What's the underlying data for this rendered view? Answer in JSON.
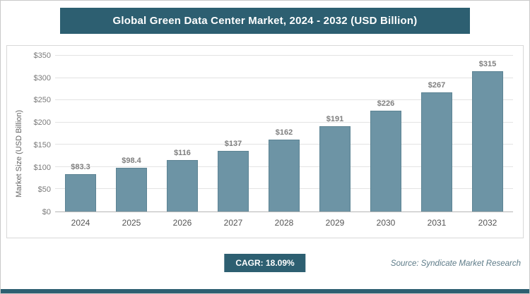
{
  "chart_data": {
    "type": "bar",
    "title": "Global Green Data Center Market, 2024 - 2032 (USD Billion)",
    "categories": [
      "2024",
      "2025",
      "2026",
      "2027",
      "2028",
      "2029",
      "2030",
      "2031",
      "2032"
    ],
    "values": [
      83.3,
      98.4,
      116,
      137,
      162,
      191,
      226,
      267,
      315
    ],
    "value_labels": [
      "$83.3",
      "$98.4",
      "$116",
      "$137",
      "$162",
      "$191",
      "$226",
      "$267",
      "$315"
    ],
    "xlabel": "",
    "ylabel": "Market Size (USD Billion)",
    "ylim": [
      0,
      350
    ],
    "ytick_values": [
      0,
      50,
      100,
      150,
      200,
      250,
      300,
      350
    ],
    "ytick_labels": [
      "$0",
      "$50",
      "$100",
      "$150",
      "$200",
      "$250",
      "$300",
      "$350"
    ],
    "grid": "horizontal",
    "legend": "none",
    "bar_color": "#6d94a5",
    "accent_color": "#2d5f71"
  },
  "footer": {
    "cagr_label": "CAGR: 18.09%",
    "source": "Source: Syndicate Market Research"
  }
}
